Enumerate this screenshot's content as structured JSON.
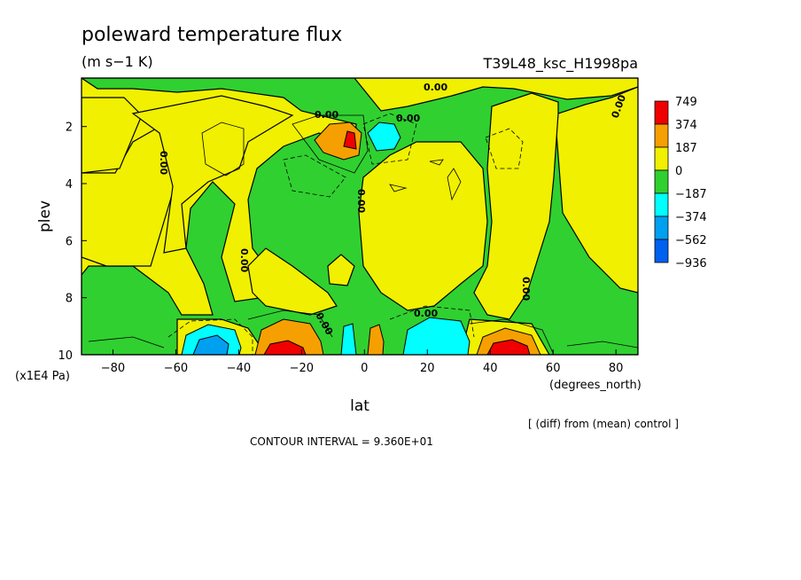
{
  "title": "poleward temperature flux",
  "units": "(m s−1 K)",
  "run_id": "T39L48_ksc_H1998pa",
  "xlabel": "lat",
  "xunits": "(degrees_north)",
  "ylabel": "plev",
  "yunits": "(x1E4 Pa)",
  "diff_note": "[ (diff) from (mean) control ]",
  "contour_interval_text": "CONTOUR INTERVAL = 9.360E+01",
  "contour_labels": [
    "0.00",
    "0.00",
    "0.00",
    "0.00",
    "0.00",
    "0.00",
    "0.00",
    "0.00",
    "0.00",
    "0.00"
  ],
  "colorbar": {
    "levels": [
      "749",
      "374",
      "187",
      "0",
      "−187",
      "−374",
      "−562",
      "−936"
    ],
    "colors": [
      "#f00000",
      "#f5a000",
      "#f0f000",
      "#30d030",
      "#00ffff",
      "#00a0f0",
      "#0060f0"
    ]
  },
  "chart_data": {
    "type": "heatmap",
    "title": "poleward temperature flux",
    "subtitle": "(m s−1 K)",
    "xlabel": "lat",
    "ylabel": "plev",
    "xlim": [
      -90,
      87
    ],
    "ylim": [
      10,
      0.3
    ],
    "x_ticks": [
      "−80",
      "−60",
      "−40",
      "−20",
      "0",
      "20",
      "40",
      "60",
      "80"
    ],
    "x_tick_values": [
      -80,
      -60,
      -40,
      -20,
      0,
      20,
      40,
      60,
      80
    ],
    "y_ticks": [
      "2",
      "4",
      "6",
      "8",
      "10"
    ],
    "y_tick_values": [
      2,
      4,
      6,
      8,
      10
    ],
    "contour_interval": 93.6,
    "regions": [
      {
        "lat": -27,
        "plev": 9.9,
        "value": 749
      },
      {
        "lat": 45,
        "plev": 9.9,
        "value": 749
      },
      {
        "lat": -4,
        "plev": 2.3,
        "value": 374
      },
      {
        "lat": -45,
        "plev": 9.7,
        "value": -562
      },
      {
        "lat": 8,
        "plev": 2.3,
        "value": -374
      },
      {
        "lat": 22,
        "plev": 9.5,
        "value": -374
      }
    ]
  }
}
